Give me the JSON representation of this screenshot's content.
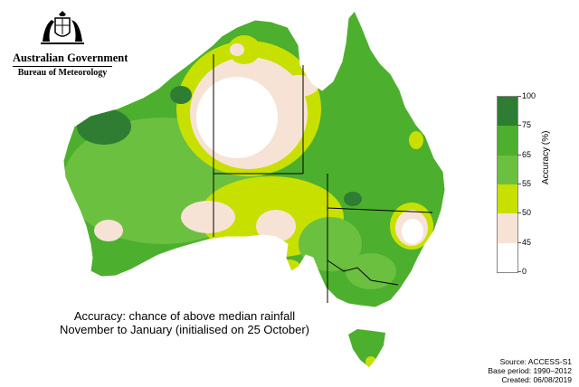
{
  "header": {
    "org_name": "Australian Government",
    "agency_name": "Bureau of Meteorology",
    "logo_icon": "commonwealth-coat-of-arms-icon"
  },
  "caption": {
    "line1": "Accuracy: chance of above median rainfall",
    "line2": "November to January  (initialised on 25 October)"
  },
  "legend": {
    "title": "Accuracy (%)",
    "ticks": [
      "100",
      "75",
      "65",
      "55",
      "50",
      "45",
      "0"
    ],
    "colors": [
      "#2e7d32",
      "#4caf2e",
      "#6cc040",
      "#c8e000",
      "#f7e3d6",
      "#ffffff"
    ]
  },
  "footer": {
    "source": "Source: ACCESS-S1",
    "base_period": "Base period: 1990–2012",
    "created": "Created: 06/08/2019"
  },
  "map_colors": {
    "band_75_100": "#2e7d32",
    "band_65_75": "#4caf2e",
    "band_55_65": "#6cc040",
    "band_50_55": "#c8e000",
    "band_45_50": "#f7e3d6",
    "band_0_45": "#ffffff",
    "borders": "#000000"
  }
}
